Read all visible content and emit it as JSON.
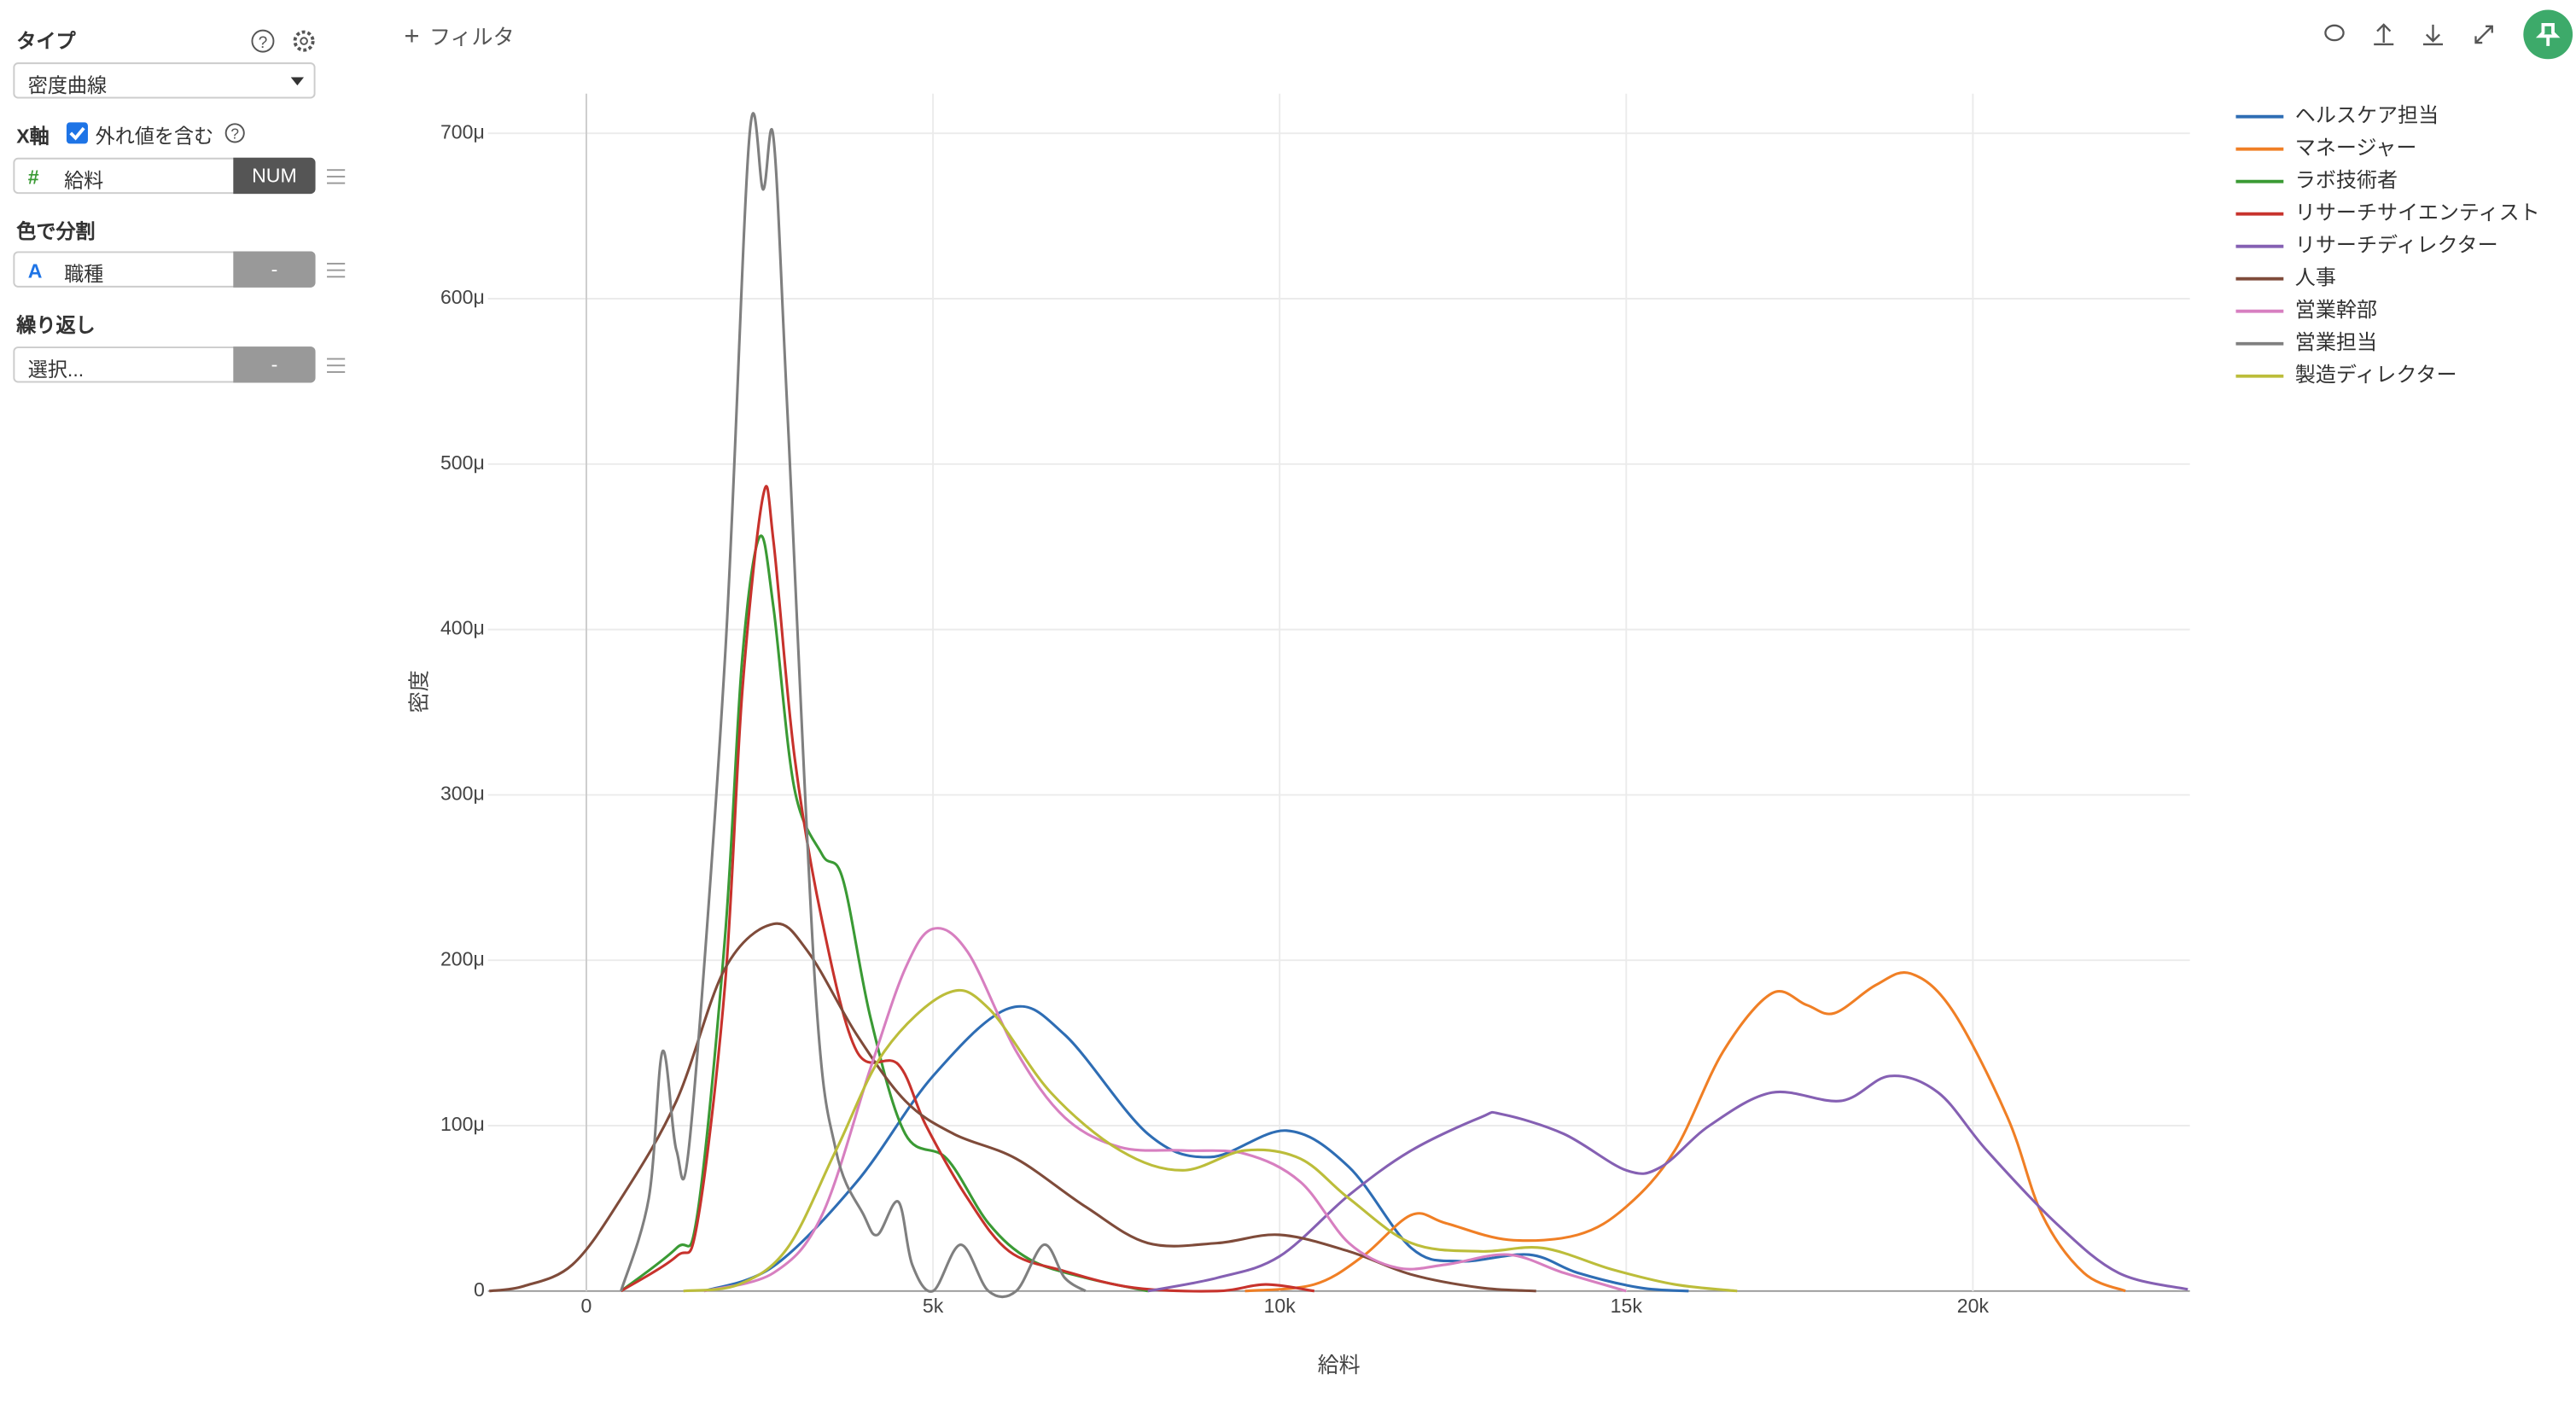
{
  "sidebar": {
    "type_label": "タイプ",
    "type_value": "密度曲線",
    "x_axis_label": "X軸",
    "outliers_label": "外れ値を含む",
    "x_field_icon": "#",
    "x_field": "給料",
    "x_field_kind": "NUM",
    "color_label": "色で分割",
    "color_field_icon": "A",
    "color_field": "職種",
    "color_field_kind": "-",
    "repeat_label": "繰り返し",
    "repeat_field": "選択...",
    "repeat_field_kind": "-"
  },
  "toolbar": {
    "filter": "フィルタ"
  },
  "chart_data": {
    "type": "line",
    "x_label": "給料",
    "y_label": "密度",
    "grid": true,
    "legend": "top-right",
    "xlim": [
      -1420,
      23130
    ],
    "ylim": [
      0,
      0.000724
    ],
    "xticks": [
      0,
      {
        "value": 5000,
        "label": "5k"
      },
      {
        "value": 10000,
        "label": "10k"
      },
      {
        "value": 15000,
        "label": "15k"
      },
      {
        "value": 20000,
        "label": "20k"
      }
    ],
    "yticks": [
      0,
      {
        "value": 0.0001,
        "label": "100μ"
      },
      {
        "value": 0.0002,
        "label": "200μ"
      },
      {
        "value": 0.0003,
        "label": "300μ"
      },
      {
        "value": 0.0004,
        "label": "400μ"
      },
      {
        "value": 0.0005,
        "label": "500μ"
      },
      {
        "value": 0.0006,
        "label": "600μ"
      },
      {
        "value": 0.0007,
        "label": "700μ"
      }
    ],
    "series": [
      {
        "name": "ヘルスケア担当",
        "color": "#2e6db4",
        "x": [
          1700,
          2700,
          3900,
          5000,
          6100,
          6900,
          8100,
          9000,
          10100,
          11000,
          11900,
          12600,
          13600,
          14300,
          15200,
          15900
        ],
        "values": [
          0,
          1.5e-05,
          6.6e-05,
          0.00013,
          0.000171,
          0.000155,
          9.5e-05,
          8.1e-05,
          9.7e-05,
          7.5e-05,
          2.6e-05,
          1.8e-05,
          2.2e-05,
          1.1e-05,
          2e-06,
          0
        ]
      },
      {
        "name": "マネージャー",
        "color": "#f07f25",
        "x": [
          9500,
          10500,
          11200,
          11900,
          12400,
          13300,
          14300,
          15000,
          15700,
          16400,
          17100,
          17600,
          18000,
          18600,
          19100,
          19700,
          20500,
          21000,
          21600,
          22200
        ],
        "values": [
          0,
          4e-06,
          2.1e-05,
          4.6e-05,
          4.1e-05,
          3.1e-05,
          3.4e-05,
          5.1e-05,
          8.5e-05,
          0.000145,
          0.00018,
          0.000173,
          0.000168,
          0.000185,
          0.000192,
          0.00017,
          0.000105,
          4.6e-05,
          1.1e-05,
          0
        ]
      },
      {
        "name": "ラボ技術者",
        "color": "#3a9a34",
        "x": [
          500,
          1300,
          1600,
          2000,
          2250,
          2500,
          2700,
          3000,
          3400,
          3700,
          4100,
          4600,
          5200,
          5800,
          6400,
          7200,
          8100
        ],
        "values": [
          0,
          2.6e-05,
          4.6e-05,
          0.000214,
          0.000383,
          0.000456,
          0.000413,
          0.000304,
          0.000264,
          0.000249,
          0.000165,
          9.5e-05,
          8e-05,
          4.1e-05,
          1.9e-05,
          8e-06,
          0
        ]
      },
      {
        "name": "リサーチサイエンティスト",
        "color": "#c7322c",
        "x": [
          500,
          1300,
          1600,
          2000,
          2250,
          2550,
          2700,
          3000,
          3400,
          3900,
          4500,
          4900,
          5500,
          6100,
          6900,
          7900,
          9100,
          9800,
          10500
        ],
        "values": [
          0,
          2.1e-05,
          4.1e-05,
          0.000185,
          0.000363,
          0.000481,
          0.000453,
          0.000324,
          0.000224,
          0.000145,
          0.000137,
          0.0001,
          5.6e-05,
          2.4e-05,
          1.2e-05,
          2e-06,
          0,
          4e-06,
          0
        ]
      },
      {
        "name": "リサーチディレクター",
        "color": "#8560b3",
        "x": [
          8100,
          9100,
          10000,
          11000,
          11900,
          12900,
          13200,
          14100,
          15000,
          15500,
          16200,
          17100,
          18100,
          18800,
          19500,
          20200,
          21200,
          22100,
          23100
        ],
        "values": [
          0,
          8e-06,
          2.1e-05,
          5.8e-05,
          8.5e-05,
          0.000105,
          0.000107,
          9.5e-05,
          7.3e-05,
          7.5e-05,
          0.0001,
          0.00012,
          0.000115,
          0.00013,
          0.00012,
          8.5e-05,
          4.1e-05,
          1.1e-05,
          1e-06
        ]
      },
      {
        "name": "人事",
        "color": "#7f4b3a",
        "x": [
          -1400,
          -900,
          -200,
          500,
          1300,
          2000,
          2700,
          3200,
          3900,
          4600,
          5300,
          6200,
          7200,
          8100,
          9100,
          10000,
          11000,
          11900,
          12900,
          13700
        ],
        "values": [
          0,
          3e-06,
          1.6e-05,
          5.6e-05,
          0.000115,
          0.000195,
          0.000222,
          0.000205,
          0.000155,
          0.000115,
          9.5e-05,
          8e-05,
          5.1e-05,
          2.9e-05,
          2.9e-05,
          3.4e-05,
          2.4e-05,
          1e-05,
          2e-06,
          0
        ]
      },
      {
        "name": "営業幹部",
        "color": "#d77fc0",
        "x": [
          1700,
          2700,
          3400,
          4100,
          4600,
          5000,
          5500,
          6200,
          6900,
          7700,
          8600,
          9500,
          10300,
          11000,
          11700,
          12400,
          13300,
          14100,
          15000
        ],
        "values": [
          0,
          1.1e-05,
          4.6e-05,
          0.000135,
          0.000195,
          0.000219,
          0.000205,
          0.000145,
          0.000105,
          8.7e-05,
          8.5e-05,
          8.3e-05,
          6.6e-05,
          2.9e-05,
          1.4e-05,
          1.6e-05,
          2.2e-05,
          1.1e-05,
          0
        ]
      },
      {
        "name": "営業担当",
        "color": "#7f7f7f",
        "x": [
          500,
          900,
          1100,
          1300,
          1500,
          2000,
          2350,
          2550,
          2700,
          2900,
          3300,
          3600,
          4000,
          4200,
          4500,
          4700,
          5000,
          5400,
          5800,
          6200,
          6600,
          6900,
          7200
        ],
        "values": [
          0,
          5.6e-05,
          0.000145,
          8.5e-05,
          9.5e-05,
          0.000383,
          0.000697,
          0.000666,
          0.000697,
          0.000532,
          0.000185,
          8.5e-05,
          4.6e-05,
          3.4e-05,
          5.4e-05,
          1.6e-05,
          0,
          2.8e-05,
          0,
          0,
          2.8e-05,
          8e-06,
          0
        ]
      },
      {
        "name": "製造ディレクター",
        "color": "#bcbd3a",
        "x": [
          1400,
          2200,
          2900,
          3600,
          4300,
          5200,
          5800,
          6700,
          7700,
          8600,
          9500,
          10300,
          11000,
          11900,
          12900,
          13800,
          14800,
          15700,
          16600
        ],
        "values": [
          0,
          4e-06,
          2.6e-05,
          8.5e-05,
          0.000145,
          0.00018,
          0.000171,
          0.00012,
          8.5e-05,
          7.3e-05,
          8.5e-05,
          8e-05,
          5.6e-05,
          2.9e-05,
          2.4e-05,
          2.6e-05,
          1.3e-05,
          4e-06,
          0
        ]
      }
    ]
  }
}
